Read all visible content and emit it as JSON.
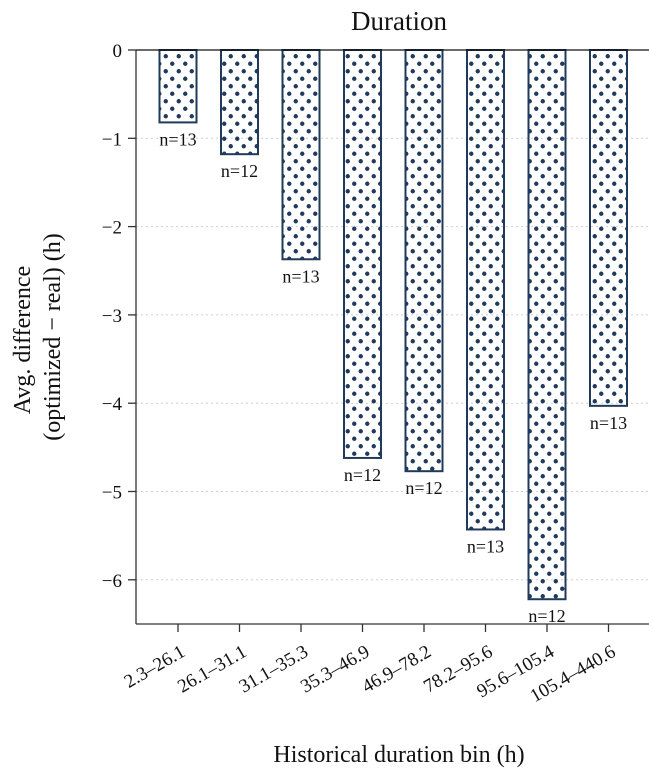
{
  "chart_data": {
    "type": "bar",
    "title": "Duration",
    "xlabel": "Historical duration bin (h)",
    "ylabel": [
      "Avg. difference",
      "(optimized − real) (h)"
    ],
    "categories": [
      "2.3–26.1",
      "26.1–31.1",
      "31.1–35.3",
      "35.3–46.9",
      "46.9–78.2",
      "78.2–95.6",
      "95.6–105.4",
      "105.4–440.6"
    ],
    "values": [
      -0.82,
      -1.18,
      -2.37,
      -4.62,
      -4.77,
      -5.43,
      -6.22,
      -4.03
    ],
    "annotations": [
      "n=13",
      "n=12",
      "n=13",
      "n=12",
      "n=12",
      "n=13",
      "n=12",
      "n=13"
    ],
    "yticks": [
      0,
      -1,
      -2,
      -3,
      -4,
      -5,
      -6
    ],
    "ytick_labels": [
      "0",
      "−1",
      "−2",
      "−3",
      "−4",
      "−5",
      "−6"
    ],
    "ylim": [
      -6.5,
      0
    ],
    "grid": "horizontal dotted",
    "colors": {
      "bar_edge": "#1f3a5a",
      "bar_dots": "#1f3a5a",
      "bar_fill": "#ffffff"
    },
    "hatch": "dots"
  }
}
